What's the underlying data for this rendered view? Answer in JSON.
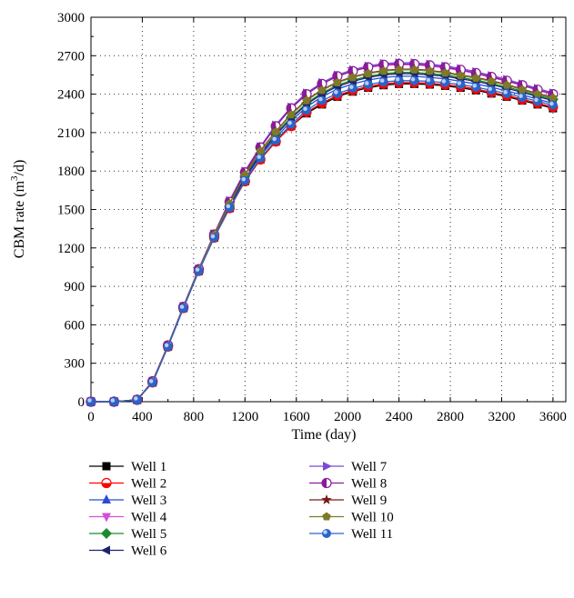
{
  "chart_data": {
    "type": "line",
    "xlabel": "Time (day)",
    "ylabel": "CBM rate (m³/d)",
    "ylabel_parts": {
      "prefix": "CBM rate (m",
      "sup": "3",
      "suffix": "/d)"
    },
    "xlim": [
      0,
      3700
    ],
    "ylim": [
      0,
      3000
    ],
    "xticks": [
      0,
      400,
      800,
      1200,
      1600,
      2000,
      2400,
      2800,
      3200,
      3600
    ],
    "yticks": [
      0,
      300,
      600,
      900,
      1200,
      1500,
      1800,
      2100,
      2400,
      2700,
      3000
    ],
    "grid": true,
    "legend_position": "bottom",
    "x": [
      0,
      180,
      360,
      480,
      600,
      720,
      840,
      960,
      1080,
      1200,
      1320,
      1440,
      1560,
      1680,
      1800,
      1920,
      2040,
      2160,
      2280,
      2400,
      2520,
      2640,
      2760,
      2880,
      3000,
      3120,
      3240,
      3360,
      3480,
      3600
    ],
    "series": [
      {
        "name": "Well 1",
        "color": "#000000",
        "marker": "square",
        "values": [
          0,
          0,
          15,
          150,
          430,
          730,
          1020,
          1280,
          1510,
          1720,
          1890,
          2030,
          2150,
          2250,
          2320,
          2380,
          2420,
          2450,
          2470,
          2480,
          2480,
          2475,
          2465,
          2450,
          2430,
          2405,
          2380,
          2350,
          2320,
          2290
        ]
      },
      {
        "name": "Well 2",
        "color": "#ff0000",
        "marker": "circle-half",
        "values": [
          0,
          0,
          15,
          150,
          430,
          730,
          1020,
          1280,
          1510,
          1720,
          1890,
          2030,
          2150,
          2260,
          2330,
          2390,
          2430,
          2460,
          2480,
          2490,
          2490,
          2485,
          2475,
          2460,
          2440,
          2415,
          2390,
          2360,
          2330,
          2300
        ]
      },
      {
        "name": "Well 3",
        "color": "#2a4bd6",
        "marker": "triangle-up",
        "values": [
          0,
          0,
          15,
          155,
          435,
          735,
          1025,
          1290,
          1520,
          1740,
          1920,
          2060,
          2190,
          2300,
          2380,
          2440,
          2480,
          2510,
          2530,
          2540,
          2540,
          2530,
          2520,
          2500,
          2480,
          2455,
          2425,
          2395,
          2360,
          2330
        ]
      },
      {
        "name": "Well 4",
        "color": "#d44fd8",
        "marker": "triangle-down",
        "values": [
          0,
          0,
          15,
          160,
          440,
          740,
          1035,
          1310,
          1560,
          1790,
          1980,
          2150,
          2290,
          2400,
          2480,
          2540,
          2580,
          2610,
          2625,
          2630,
          2630,
          2620,
          2605,
          2585,
          2560,
          2530,
          2500,
          2470,
          2430,
          2400
        ]
      },
      {
        "name": "Well 5",
        "color": "#1d8a2e",
        "marker": "diamond",
        "values": [
          0,
          0,
          15,
          155,
          435,
          735,
          1030,
          1295,
          1530,
          1760,
          1940,
          2090,
          2220,
          2330,
          2410,
          2470,
          2510,
          2540,
          2560,
          2570,
          2570,
          2560,
          2550,
          2530,
          2510,
          2485,
          2455,
          2425,
          2390,
          2360
        ]
      },
      {
        "name": "Well 6",
        "color": "#1c2375",
        "marker": "triangle-left",
        "values": [
          0,
          0,
          15,
          155,
          435,
          735,
          1025,
          1290,
          1520,
          1750,
          1930,
          2080,
          2210,
          2320,
          2400,
          2460,
          2500,
          2530,
          2550,
          2560,
          2560,
          2550,
          2540,
          2520,
          2500,
          2475,
          2445,
          2415,
          2380,
          2350
        ]
      },
      {
        "name": "Well 7",
        "color": "#7a4ad8",
        "marker": "triangle-right",
        "values": [
          0,
          0,
          15,
          160,
          440,
          745,
          1035,
          1310,
          1570,
          1800,
          1990,
          2160,
          2300,
          2410,
          2490,
          2550,
          2590,
          2620,
          2640,
          2645,
          2645,
          2635,
          2620,
          2600,
          2575,
          2545,
          2515,
          2480,
          2445,
          2410
        ]
      },
      {
        "name": "Well 8",
        "color": "#8a1a9a",
        "marker": "circle-halfv",
        "values": [
          0,
          0,
          15,
          160,
          440,
          740,
          1035,
          1305,
          1560,
          1790,
          1985,
          2150,
          2290,
          2400,
          2480,
          2540,
          2580,
          2610,
          2630,
          2635,
          2635,
          2625,
          2610,
          2590,
          2565,
          2535,
          2505,
          2470,
          2435,
          2400
        ]
      },
      {
        "name": "Well 9",
        "color": "#7a1a1a",
        "marker": "star",
        "values": [
          0,
          0,
          15,
          155,
          435,
          735,
          1030,
          1300,
          1545,
          1775,
          1960,
          2110,
          2245,
          2355,
          2435,
          2495,
          2535,
          2565,
          2585,
          2595,
          2595,
          2585,
          2570,
          2550,
          2530,
          2505,
          2475,
          2440,
          2405,
          2375
        ]
      },
      {
        "name": "Well 10",
        "color": "#7d7a28",
        "marker": "pentagon",
        "values": [
          0,
          0,
          15,
          155,
          435,
          735,
          1030,
          1300,
          1545,
          1770,
          1955,
          2105,
          2240,
          2350,
          2430,
          2490,
          2530,
          2560,
          2580,
          2590,
          2590,
          2580,
          2565,
          2545,
          2525,
          2500,
          2470,
          2435,
          2400,
          2370
        ]
      },
      {
        "name": "Well 11",
        "color": "#2a64c8",
        "marker": "sphere",
        "values": [
          0,
          0,
          15,
          150,
          430,
          730,
          1020,
          1280,
          1515,
          1725,
          1900,
          2040,
          2165,
          2275,
          2350,
          2405,
          2445,
          2475,
          2495,
          2505,
          2505,
          2500,
          2490,
          2475,
          2455,
          2430,
          2405,
          2375,
          2345,
          2315
        ]
      }
    ]
  }
}
